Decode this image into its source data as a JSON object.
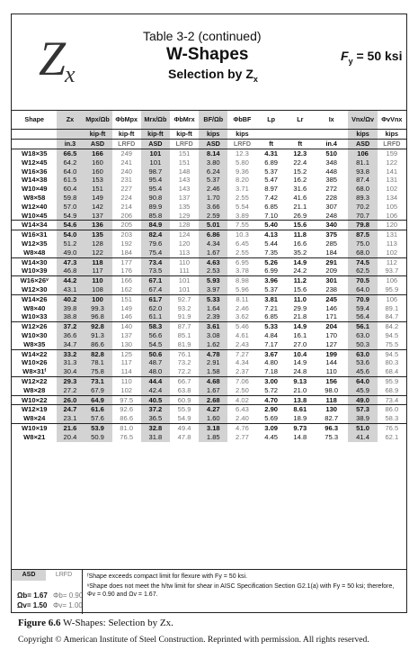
{
  "header": {
    "symbol": "Z",
    "symbol_sub": "x",
    "title_line1": "Table 3-2 (continued)",
    "title_line2": "W-Shapes",
    "title_line3": "Selection by Z",
    "title_line3_sub": "x",
    "fy": "F",
    "fy_sub": "y",
    "fy_value": " = 50 ksi"
  },
  "columns": {
    "h1": [
      "Shape",
      "Zx",
      "Mpx/Ωb",
      "ΦbMpx",
      "Mrx/Ωb",
      "ΦbMrx",
      "BF/Ωb",
      "ΦbBF",
      "Lp",
      "Lr",
      "Ix",
      "Vnx/Ωv",
      "ΦvVnx"
    ],
    "h2": [
      "",
      "",
      "kip-ft",
      "kip-ft",
      "kip-ft",
      "kip-ft",
      "kips",
      "kips",
      "",
      "",
      "",
      "kips",
      "kips"
    ],
    "h3": [
      "",
      "in.3",
      "ASD",
      "LRFD",
      "ASD",
      "LRFD",
      "ASD",
      "LRFD",
      "ft",
      "ft",
      "in.4",
      "ASD",
      "LRFD"
    ]
  },
  "groups": [
    {
      "rows": [
        [
          "W18×35",
          "66.5",
          "166",
          "249",
          "101",
          "151",
          "8.14",
          "12.3",
          "4.31",
          "12.3",
          "510",
          "106",
          "159"
        ],
        [
          "W12×45",
          "64.2",
          "160",
          "241",
          "101",
          "151",
          "3.80",
          "5.80",
          "6.89",
          "22.4",
          "348",
          "81.1",
          "122"
        ],
        [
          "W16×36",
          "64.0",
          "160",
          "240",
          "98.7",
          "148",
          "6.24",
          "9.36",
          "5.37",
          "15.2",
          "448",
          "93.8",
          "141"
        ],
        [
          "W14×38",
          "61.5",
          "153",
          "231",
          "95.4",
          "143",
          "5.37",
          "8.20",
          "5.47",
          "16.2",
          "385",
          "87.4",
          "131"
        ],
        [
          "W10×49",
          "60.4",
          "151",
          "227",
          "95.4",
          "143",
          "2.46",
          "3.71",
          "8.97",
          "31.6",
          "272",
          "68.0",
          "102"
        ],
        [
          "W8×58",
          "59.8",
          "149",
          "224",
          "90.8",
          "137",
          "1.70",
          "2.55",
          "7.42",
          "41.6",
          "228",
          "89.3",
          "134"
        ],
        [
          "W12×40",
          "57.0",
          "142",
          "214",
          "89.9",
          "135",
          "3.66",
          "5.54",
          "6.85",
          "21.1",
          "307",
          "70.2",
          "105"
        ],
        [
          "W10×45",
          "54.9",
          "137",
          "206",
          "85.8",
          "129",
          "2.59",
          "3.89",
          "7.10",
          "26.9",
          "248",
          "70.7",
          "106"
        ]
      ]
    },
    {
      "rows": [
        [
          "W14×34",
          "54.6",
          "136",
          "205",
          "84.9",
          "128",
          "5.01",
          "7.55",
          "5.40",
          "15.6",
          "340",
          "79.8",
          "120"
        ]
      ]
    },
    {
      "rows": [
        [
          "W16×31",
          "54.0",
          "135",
          "203",
          "82.4",
          "124",
          "6.86",
          "10.3",
          "4.13",
          "11.8",
          "375",
          "87.5",
          "131"
        ],
        [
          "W12×35",
          "51.2",
          "128",
          "192",
          "79.6",
          "120",
          "4.34",
          "6.45",
          "5.44",
          "16.6",
          "285",
          "75.0",
          "113"
        ],
        [
          "W8×48",
          "49.0",
          "122",
          "184",
          "75.4",
          "113",
          "1.67",
          "2.55",
          "7.35",
          "35.2",
          "184",
          "68.0",
          "102"
        ]
      ]
    },
    {
      "rows": [
        [
          "W14×30",
          "47.3",
          "118",
          "177",
          "73.4",
          "110",
          "4.63",
          "6.95",
          "5.26",
          "14.9",
          "291",
          "74.5",
          "112"
        ],
        [
          "W10×39",
          "46.8",
          "117",
          "176",
          "73.5",
          "111",
          "2.53",
          "3.78",
          "6.99",
          "24.2",
          "209",
          "62.5",
          "93.7"
        ]
      ]
    },
    {
      "rows": [
        [
          "W16×26ᵛ",
          "44.2",
          "110",
          "166",
          "67.1",
          "101",
          "5.93",
          "8.98",
          "3.96",
          "11.2",
          "301",
          "70.5",
          "106"
        ],
        [
          "W12×30",
          "43.1",
          "108",
          "162",
          "67.4",
          "101",
          "3.97",
          "5.96",
          "5.37",
          "15.6",
          "238",
          "64.0",
          "95.9"
        ]
      ]
    },
    {
      "rows": [
        [
          "W14×26",
          "40.2",
          "100",
          "151",
          "61.7",
          "92.7",
          "5.33",
          "8.11",
          "3.81",
          "11.0",
          "245",
          "70.9",
          "106"
        ],
        [
          "W8×40",
          "39.8",
          "99.3",
          "149",
          "62.0",
          "93.2",
          "1.64",
          "2.46",
          "7.21",
          "29.9",
          "146",
          "59.4",
          "89.1"
        ],
        [
          "W10×33",
          "38.8",
          "96.8",
          "146",
          "61.1",
          "91.9",
          "2.39",
          "3.62",
          "6.85",
          "21.8",
          "171",
          "56.4",
          "84.7"
        ]
      ]
    },
    {
      "rows": [
        [
          "W12×26",
          "37.2",
          "92.8",
          "140",
          "58.3",
          "87.7",
          "3.61",
          "5.46",
          "5.33",
          "14.9",
          "204",
          "56.1",
          "84.2"
        ],
        [
          "W10×30",
          "36.6",
          "91.3",
          "137",
          "56.6",
          "85.1",
          "3.08",
          "4.61",
          "4.84",
          "16.1",
          "170",
          "63.0",
          "94.5"
        ],
        [
          "W8×35",
          "34.7",
          "86.6",
          "130",
          "54.5",
          "81.9",
          "1.62",
          "2.43",
          "7.17",
          "27.0",
          "127",
          "50.3",
          "75.5"
        ]
      ]
    },
    {
      "rows": [
        [
          "W14×22",
          "33.2",
          "82.8",
          "125",
          "50.6",
          "76.1",
          "4.78",
          "7.27",
          "3.67",
          "10.4",
          "199",
          "63.0",
          "94.5"
        ],
        [
          "W10×26",
          "31.3",
          "78.1",
          "117",
          "48.7",
          "73.2",
          "2.91",
          "4.34",
          "4.80",
          "14.9",
          "144",
          "53.6",
          "80.3"
        ],
        [
          "W8×31ᶠ",
          "30.4",
          "75.8",
          "114",
          "48.0",
          "72.2",
          "1.58",
          "2.37",
          "7.18",
          "24.8",
          "110",
          "45.6",
          "68.4"
        ]
      ]
    },
    {
      "rows": [
        [
          "W12×22",
          "29.3",
          "73.1",
          "110",
          "44.4",
          "66.7",
          "4.68",
          "7.06",
          "3.00",
          "9.13",
          "156",
          "64.0",
          "95.9"
        ],
        [
          "W8×28",
          "27.2",
          "67.9",
          "102",
          "42.4",
          "63.8",
          "1.67",
          "2.50",
          "5.72",
          "21.0",
          "98.0",
          "45.9",
          "68.9"
        ]
      ]
    },
    {
      "rows": [
        [
          "W10×22",
          "26.0",
          "64.9",
          "97.5",
          "40.5",
          "60.9",
          "2.68",
          "4.02",
          "4.70",
          "13.8",
          "118",
          "49.0",
          "73.4"
        ]
      ]
    },
    {
      "rows": [
        [
          "W12×19",
          "24.7",
          "61.6",
          "92.6",
          "37.2",
          "55.9",
          "4.27",
          "6.43",
          "2.90",
          "8.61",
          "130",
          "57.3",
          "86.0"
        ],
        [
          "W8×24",
          "23.1",
          "57.6",
          "86.6",
          "36.5",
          "54.9",
          "1.60",
          "2.40",
          "5.69",
          "18.9",
          "82.7",
          "38.9",
          "58.3"
        ]
      ]
    },
    {
      "rows": [
        [
          "W10×19",
          "21.6",
          "53.9",
          "81.0",
          "32.8",
          "49.4",
          "3.18",
          "4.76",
          "3.09",
          "9.73",
          "96.3",
          "51.0",
          "76.5"
        ],
        [
          "W8×21",
          "20.4",
          "50.9",
          "76.5",
          "31.8",
          "47.8",
          "1.85",
          "2.77",
          "4.45",
          "14.8",
          "75.3",
          "41.4",
          "62.1"
        ]
      ]
    }
  ],
  "footer": {
    "asd": "ASD",
    "lrfd": "LRFD",
    "omega_b": "Ωb= 1.67",
    "omega_v": "Ωv= 1.50",
    "phi_b": "Φb= 0.90",
    "phi_v": "Φv= 1.00",
    "note1": "ᶠShape exceeds compact limit for flexure with Fy = 50 ksi.",
    "note2": "ᵛShape does not meet the h/tw limit for shear in AISC Specification Section G2.1(a) with Fy = 50 ksi; therefore, Φv = 0.90 and Ωv = 1.67."
  },
  "caption": {
    "label": "Figure 6.6",
    "text": "W-Shapes: Selection by Zx.",
    "copyright": "Copyright © American Institute of Steel Construction. Reprinted with permission. All rights reserved."
  }
}
